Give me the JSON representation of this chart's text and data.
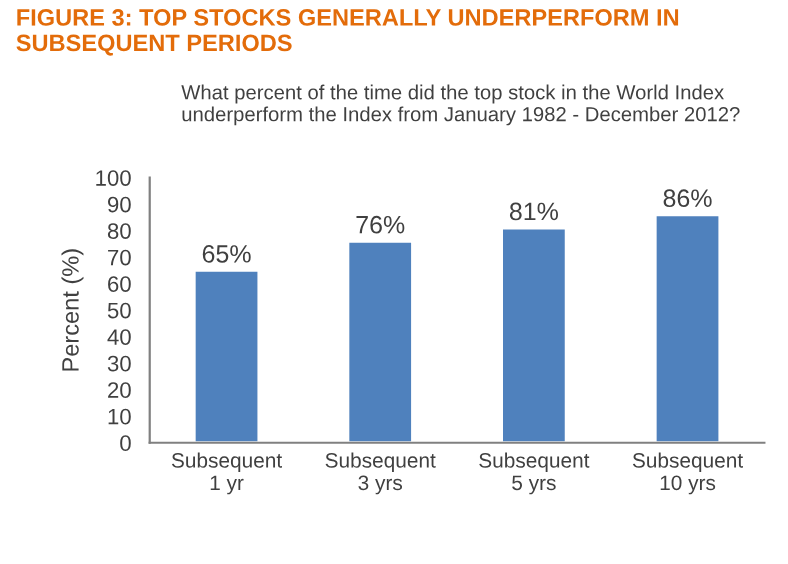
{
  "chart_data": {
    "type": "bar",
    "title": "FIGURE 3: TOP STOCKS GENERALLY UNDERPERFORM IN\nSUBSEQUENT PERIODS",
    "subtitle": "What percent of the time did the top stock in the World Index\nunderperform the Index from January 1982 - December 2012?",
    "ylabel": "Percent (%)",
    "categories": [
      "Subsequent\n1 yr",
      "Subsequent\n3 yrs",
      "Subsequent\n5 yrs",
      "Subsequent\n10 yrs"
    ],
    "values": [
      65,
      76,
      81,
      86
    ],
    "color": "#4f81bd",
    "value_labels": [
      "65%",
      "76%",
      "81%",
      "86%"
    ],
    "ylim": [
      0,
      100
    ],
    "yticks": [
      0,
      10,
      20,
      30,
      40,
      50,
      60,
      70,
      80,
      90,
      100
    ],
    "grid": false,
    "legend": false
  }
}
